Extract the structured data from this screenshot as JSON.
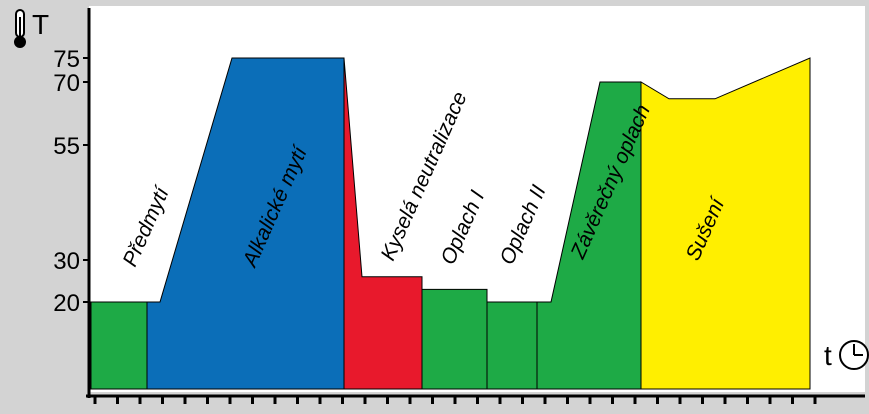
{
  "chart_data": {
    "type": "area",
    "title": "",
    "xlabel": "t",
    "ylabel": "T",
    "yticks": [
      20,
      30,
      55,
      70,
      75
    ],
    "ylim": [
      0,
      100
    ],
    "grid": false,
    "legend": "none",
    "stages": [
      {
        "label": "Předmytí",
        "color": "#1eaa46"
      },
      {
        "label": "Alkalické mytí",
        "color": "#0b6eb8"
      },
      {
        "label": "Kyselá neutralizace",
        "color": "#e8192c"
      },
      {
        "label": "Oplach I",
        "color": "#1eaa46"
      },
      {
        "label": "Oplach II",
        "color": "#1eaa46"
      },
      {
        "label": "Závěrečný oplach",
        "color": "#1eaa46"
      },
      {
        "label": "Sušení",
        "color": "#ffef00"
      }
    ]
  },
  "icons": {
    "thermometer": "thermometer-icon",
    "clock": "clock-icon"
  }
}
